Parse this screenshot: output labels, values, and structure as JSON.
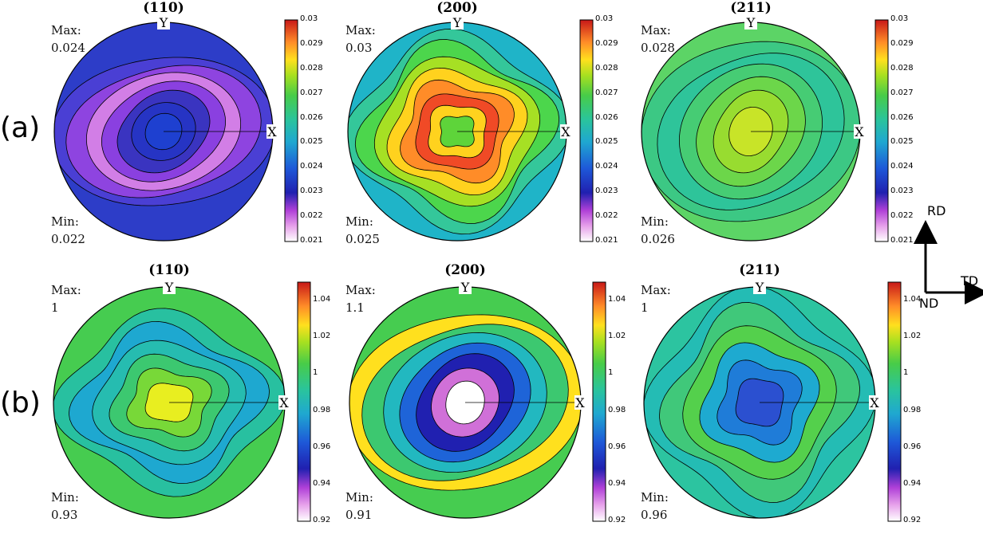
{
  "chart_data": [
    {
      "type": "heatmap",
      "id": "a110",
      "row": "(a)",
      "title": "(110)",
      "max_label": "Max:",
      "max_value": "0.024",
      "min_label": "Min:",
      "min_value": "0.022",
      "axis_x": "X",
      "axis_y": "Y",
      "colorbar": {
        "range": [
          0.021,
          0.03
        ],
        "ticks": [
          "0.03",
          "0.029",
          "0.028",
          "0.027",
          "0.026",
          "0.025",
          "0.024",
          "0.023",
          "0.022",
          "0.021"
        ]
      },
      "levels": [
        {
          "value": 0.0235,
          "color": "#2d3dc8"
        },
        {
          "value": 0.0232,
          "color": "#4a3fd4"
        },
        {
          "value": 0.0226,
          "color": "#8e44e0"
        },
        {
          "value": 0.0222,
          "color": "#d27ee6"
        },
        {
          "value": 0.0225,
          "color": "#8a40e0"
        },
        {
          "value": 0.023,
          "color": "#3a34c0"
        },
        {
          "value": 0.0233,
          "color": "#2634c4"
        },
        {
          "value": 0.0236,
          "color": "#1e40d0"
        }
      ]
    },
    {
      "type": "heatmap",
      "id": "a200",
      "row": "(a)",
      "title": "(200)",
      "max_label": "Max:",
      "max_value": "0.03",
      "min_label": "Min:",
      "min_value": "0.025",
      "axis_x": "X",
      "axis_y": "Y",
      "colorbar": {
        "range": [
          0.021,
          0.03
        ],
        "ticks": [
          "0.03",
          "0.029",
          "0.028",
          "0.027",
          "0.026",
          "0.025",
          "0.024",
          "0.023",
          "0.022",
          "0.021"
        ]
      },
      "levels": [
        {
          "value": 0.0254,
          "color": "#1fb4c8"
        },
        {
          "value": 0.026,
          "color": "#34c79a"
        },
        {
          "value": 0.0268,
          "color": "#4cd64c"
        },
        {
          "value": 0.0275,
          "color": "#a6e024"
        },
        {
          "value": 0.0283,
          "color": "#ffd21e"
        },
        {
          "value": 0.0289,
          "color": "#ff8c28"
        },
        {
          "value": 0.0295,
          "color": "#f04a26"
        },
        {
          "value": 0.0285,
          "color": "#ffd21e"
        },
        {
          "value": 0.0276,
          "color": "#5ed43a"
        }
      ]
    },
    {
      "type": "heatmap",
      "id": "a211",
      "row": "(a)",
      "title": "(211)",
      "max_label": "Max:",
      "max_value": "0.028",
      "min_label": "Min:",
      "min_value": "0.026",
      "axis_x": "X",
      "axis_y": "Y",
      "colorbar": {
        "range": [
          0.021,
          0.03
        ],
        "ticks": [
          "0.03",
          "0.029",
          "0.028",
          "0.027",
          "0.026",
          "0.025",
          "0.024",
          "0.023",
          "0.022",
          "0.021"
        ]
      },
      "levels": [
        {
          "value": 0.0268,
          "color": "#5cd466"
        },
        {
          "value": 0.0265,
          "color": "#3cc884"
        },
        {
          "value": 0.0262,
          "color": "#2ec49a"
        },
        {
          "value": 0.0266,
          "color": "#46cc74"
        },
        {
          "value": 0.027,
          "color": "#6cd64a"
        },
        {
          "value": 0.0273,
          "color": "#98dc30"
        },
        {
          "value": 0.0276,
          "color": "#c8e428"
        }
      ]
    },
    {
      "type": "heatmap",
      "id": "b110",
      "row": "(b)",
      "title": "(110)",
      "max_label": "Max:",
      "max_value": "1",
      "min_label": "Min:",
      "min_value": "0.93",
      "axis_x": "X",
      "axis_y": "Y",
      "colorbar": {
        "range": [
          0.92,
          1.05
        ],
        "ticks": [
          "1.04",
          "1.02",
          "1",
          "0.98",
          "0.96",
          "0.94",
          "0.92"
        ]
      },
      "levels": [
        {
          "value": 1.005,
          "color": "#46cc50"
        },
        {
          "value": 0.995,
          "color": "#28c0a0"
        },
        {
          "value": 0.985,
          "color": "#1ea8d0"
        },
        {
          "value": 0.99,
          "color": "#26bcb0"
        },
        {
          "value": 1.0,
          "color": "#3cc870"
        },
        {
          "value": 1.01,
          "color": "#78d838"
        },
        {
          "value": 1.02,
          "color": "#e8ee20"
        }
      ]
    },
    {
      "type": "heatmap",
      "id": "b200",
      "row": "(b)",
      "title": "(200)",
      "max_label": "Max:",
      "max_value": "1.1",
      "min_label": "Min:",
      "min_value": "0.91",
      "axis_x": "X",
      "axis_y": "Y",
      "colorbar": {
        "range": [
          0.92,
          1.05
        ],
        "ticks": [
          "1.04",
          "1.02",
          "1",
          "0.98",
          "0.96",
          "0.94",
          "0.92"
        ]
      },
      "levels": [
        {
          "value": 1.005,
          "color": "#46cc50"
        },
        {
          "value": 1.02,
          "color": "#ffe01e"
        },
        {
          "value": 1.0,
          "color": "#3cc870"
        },
        {
          "value": 0.99,
          "color": "#22b8c0"
        },
        {
          "value": 0.97,
          "color": "#1e64d8"
        },
        {
          "value": 0.94,
          "color": "#2020b0"
        },
        {
          "value": 0.93,
          "color": "#d070d8"
        },
        {
          "value": 0.92,
          "color": "#ffffff"
        }
      ]
    },
    {
      "type": "heatmap",
      "id": "b211",
      "row": "(b)",
      "title": "(211)",
      "max_label": "Max:",
      "max_value": "1",
      "min_label": "Min:",
      "min_value": "0.96",
      "axis_x": "X",
      "axis_y": "Y",
      "colorbar": {
        "range": [
          0.92,
          1.05
        ],
        "ticks": [
          "1.04",
          "1.02",
          "1",
          "0.98",
          "0.96",
          "0.94",
          "0.92"
        ]
      },
      "levels": [
        {
          "value": 0.995,
          "color": "#2cc4a0"
        },
        {
          "value": 0.99,
          "color": "#24bcb4"
        },
        {
          "value": 1.0,
          "color": "#40c87a"
        },
        {
          "value": 1.01,
          "color": "#54d04c"
        },
        {
          "value": 0.98,
          "color": "#1eaad0"
        },
        {
          "value": 0.97,
          "color": "#1f7cd8"
        },
        {
          "value": 0.96,
          "color": "#2b50d0"
        }
      ]
    }
  ],
  "row_labels": [
    "(a)",
    "(b)"
  ],
  "axes_key": {
    "rd": "RD",
    "td": "TD",
    "nd": "ND"
  },
  "colors": {
    "outline": "#000000",
    "background": "#ffffff"
  }
}
